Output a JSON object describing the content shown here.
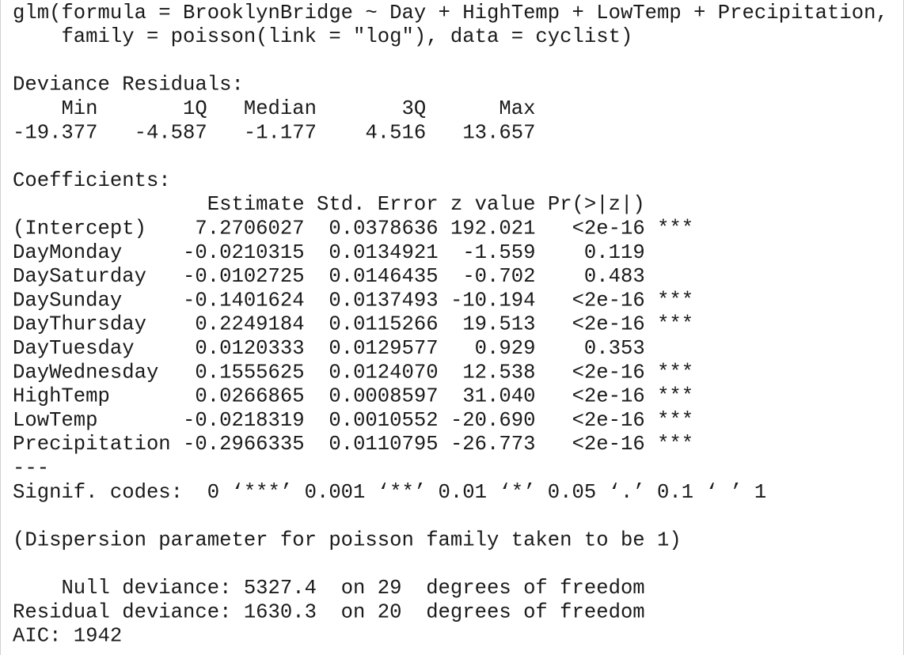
{
  "call": [
    "glm(formula = BrooklynBridge ~ Day + HighTemp + LowTemp + Precipitation,",
    "family = poisson(link = \"log\"), data = cyclist)"
  ],
  "deviance_residuals": {
    "title": "Deviance Residuals:",
    "headers": [
      "Min",
      "1Q",
      "Median",
      "3Q",
      "Max"
    ],
    "values": [
      "-19.377",
      "-4.587",
      "-1.177",
      "4.516",
      "13.657"
    ]
  },
  "coefficients": {
    "title": "Coefficients:",
    "headers": [
      "Estimate",
      "Std. Error",
      "z value",
      "Pr(>|z|)"
    ],
    "rows": [
      {
        "name": "(Intercept)",
        "cells": [
          "7.2706027",
          "0.0378636",
          "192.021",
          "<2e-16"
        ],
        "signif": "***"
      },
      {
        "name": "DayMonday",
        "cells": [
          "-0.0210315",
          "0.0134921",
          "-1.559",
          "0.119"
        ]
      },
      {
        "name": "DaySaturday",
        "cells": [
          "-0.0102725",
          "0.0146435",
          "-0.702",
          "0.483"
        ]
      },
      {
        "name": "DaySunday",
        "cells": [
          "-0.1401624",
          "0.0137493",
          "-10.194",
          "<2e-16"
        ],
        "signif": "***"
      },
      {
        "name": "DayThursday",
        "cells": [
          "0.2249184",
          "0.0115266",
          "19.513",
          "<2e-16"
        ],
        "signif": "***"
      },
      {
        "name": "DayTuesday",
        "cells": [
          "0.0120333",
          "0.0129577",
          "0.929",
          "0.353"
        ]
      },
      {
        "name": "DayWednesday",
        "cells": [
          "0.1555625",
          "0.0124070",
          "12.538",
          "<2e-16"
        ],
        "signif": "***"
      },
      {
        "name": "HighTemp",
        "cells": [
          "0.0266865",
          "0.0008597",
          "31.040",
          "<2e-16"
        ],
        "signif": "***"
      },
      {
        "name": "LowTemp",
        "cells": [
          "-0.0218319",
          "0.0010552",
          "-20.690",
          "<2e-16"
        ],
        "signif": "***"
      },
      {
        "name": "Precipitation",
        "cells": [
          "-0.2966335",
          "0.0110795",
          "-26.773",
          "<2e-16"
        ],
        "signif": "***"
      }
    ],
    "separator": "---",
    "signif_codes": "Signif. codes:  0 ‘***’ 0.001 ‘**’ 0.01 ‘*’ 0.05 ‘.’ 0.1 ‘ ’ 1"
  },
  "dispersion": "(Dispersion parameter for poisson family taken to be 1)",
  "deviance": [
    "Null deviance: 5327.4  on 29  degrees of freedom",
    "Residual deviance: 1630.3  on 20  degrees of freedom"
  ],
  "aic": "AIC: 1942"
}
